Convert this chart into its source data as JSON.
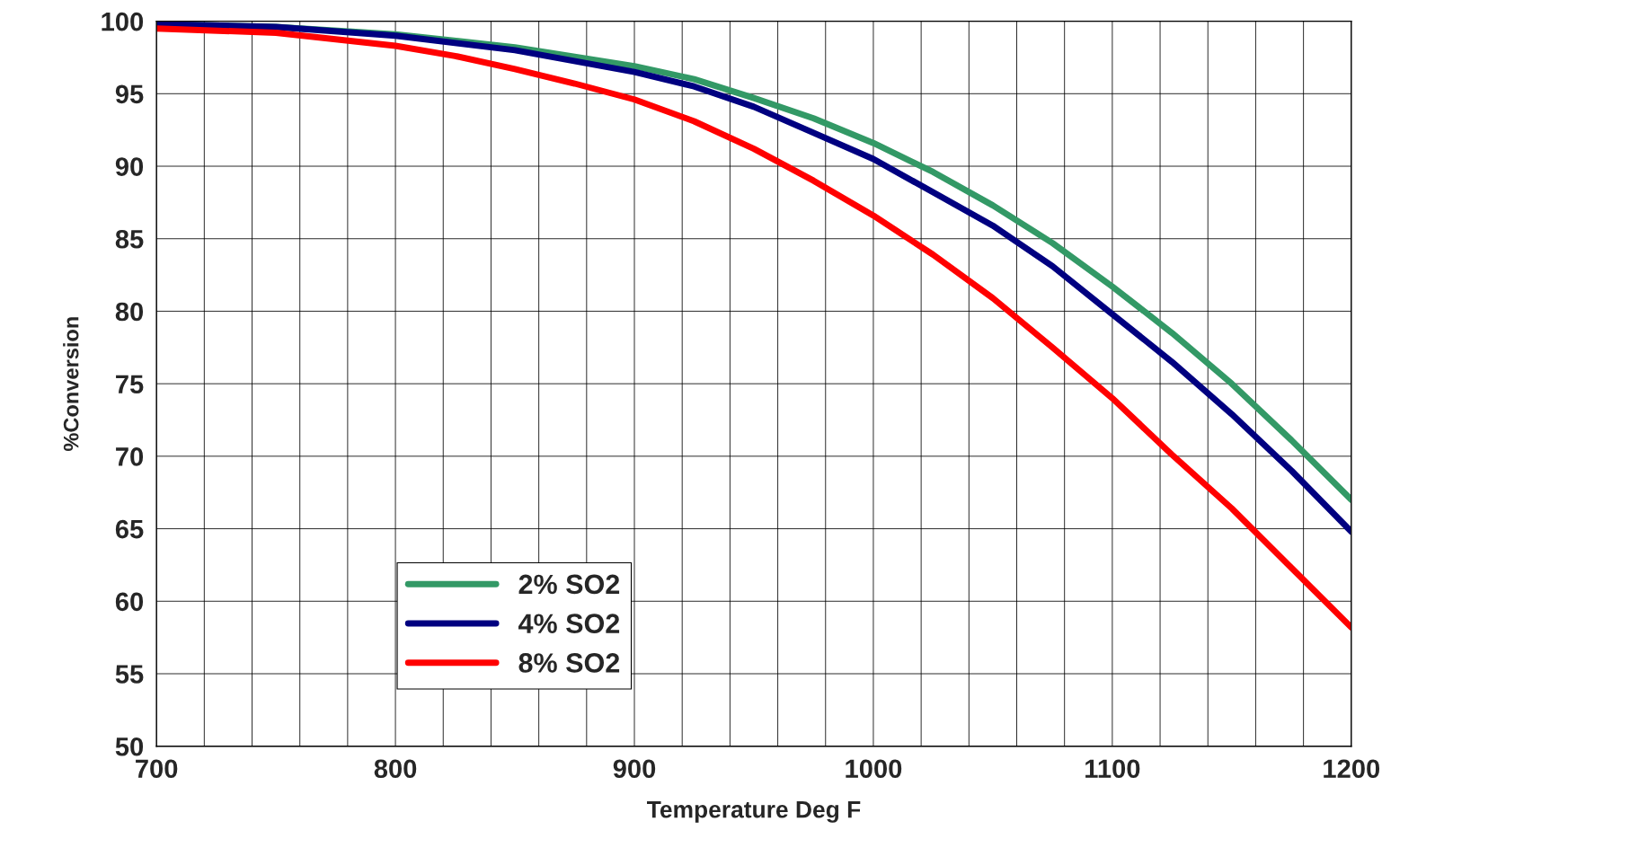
{
  "chart_data": {
    "type": "line",
    "xlabel": "Temperature Deg F",
    "ylabel": "%Conversion",
    "xlim": [
      700,
      1200
    ],
    "ylim": [
      50,
      100
    ],
    "xticks": [
      700,
      {
        "value": 720,
        "label": null
      },
      {
        "value": 740,
        "label": null
      },
      {
        "value": 760,
        "label": null
      },
      {
        "value": 780,
        "label": null
      },
      800,
      {
        "value": 820,
        "label": null
      },
      {
        "value": 840,
        "label": null
      },
      {
        "value": 860,
        "label": null
      },
      {
        "value": 880,
        "label": null
      },
      900,
      {
        "value": 920,
        "label": null
      },
      {
        "value": 940,
        "label": null
      },
      {
        "value": 960,
        "label": null
      },
      {
        "value": 980,
        "label": null
      },
      1000,
      {
        "value": 1020,
        "label": null
      },
      {
        "value": 1040,
        "label": null
      },
      {
        "value": 1060,
        "label": null
      },
      {
        "value": 1080,
        "label": null
      },
      1100,
      {
        "value": 1120,
        "label": null
      },
      {
        "value": 1140,
        "label": null
      },
      {
        "value": 1160,
        "label": null
      },
      {
        "value": 1180,
        "label": null
      },
      1200
    ],
    "yticks": [
      50,
      55,
      60,
      65,
      70,
      75,
      80,
      85,
      90,
      95,
      100
    ],
    "grid": true,
    "legend": "bottom left",
    "marker": "none",
    "line_style": "solid",
    "series": [
      {
        "name": "2% SO2",
        "color": "#339966",
        "x": [
          700,
          750,
          800,
          850,
          900,
          925,
          950,
          975,
          1000,
          1025,
          1050,
          1075,
          1100,
          1125,
          1150,
          1175,
          1200
        ],
        "values": [
          99.8,
          99.6,
          99.1,
          98.2,
          96.9,
          96.0,
          94.7,
          93.3,
          91.6,
          89.6,
          87.3,
          84.7,
          81.7,
          78.5,
          75.0,
          71.1,
          67.0
        ]
      },
      {
        "name": "4% SO2",
        "color": "#000080",
        "x": [
          700,
          750,
          800,
          850,
          900,
          925,
          950,
          975,
          1000,
          1025,
          1050,
          1075,
          1100,
          1125,
          1150,
          1175,
          1200
        ],
        "values": [
          99.8,
          99.6,
          99.0,
          98.0,
          96.5,
          95.5,
          94.1,
          92.3,
          90.5,
          88.2,
          85.9,
          83.1,
          79.8,
          76.5,
          72.9,
          69.0,
          64.8
        ]
      },
      {
        "name": "8% SO2",
        "color": "#ff0000",
        "x": [
          700,
          750,
          800,
          825,
          850,
          875,
          900,
          925,
          950,
          975,
          1000,
          1025,
          1050,
          1075,
          1100,
          1125,
          1150,
          1175,
          1200
        ],
        "values": [
          99.5,
          99.2,
          98.3,
          97.6,
          96.7,
          95.7,
          94.6,
          93.1,
          91.2,
          89.0,
          86.6,
          83.9,
          80.9,
          77.5,
          74.0,
          70.1,
          66.4,
          62.3,
          58.2
        ]
      }
    ]
  }
}
